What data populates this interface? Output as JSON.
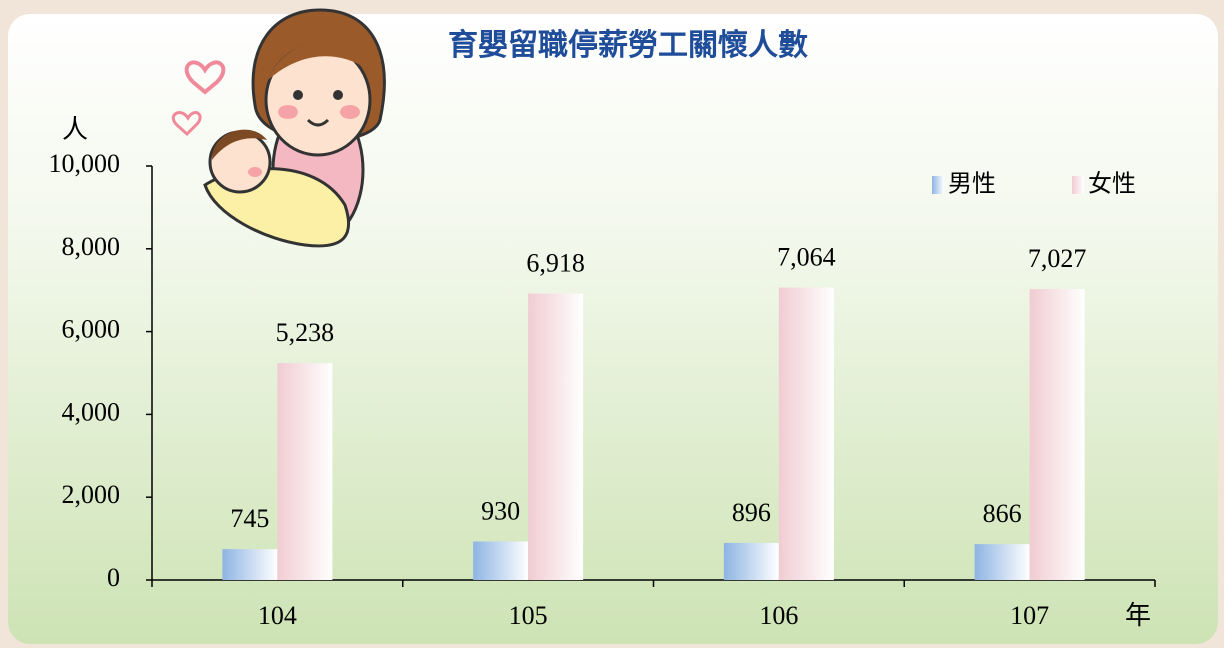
{
  "chart_data": {
    "type": "bar",
    "title": "育嬰留職停薪勞工關懷人數",
    "y_label": "人",
    "x_label": "年",
    "categories": [
      "104",
      "105",
      "106",
      "107"
    ],
    "series": [
      {
        "name": "男性",
        "color": "#8eb4e3",
        "values": [
          745,
          930,
          896,
          866
        ],
        "value_labels": [
          "745",
          "930",
          "896",
          "866"
        ]
      },
      {
        "name": "女性",
        "color": "#f0ccd2",
        "values": [
          5238,
          6918,
          7064,
          7027
        ],
        "value_labels": [
          "5,238",
          "6,918",
          "7,064",
          "7,027"
        ]
      }
    ],
    "ylim": [
      0,
      10000
    ],
    "yticks": [
      0,
      {
        "value": 2000,
        "label": "2,000"
      },
      {
        "value": 4000,
        "label": "4,000"
      },
      {
        "value": 6000,
        "label": "6,000"
      },
      {
        "value": 8000,
        "label": "8,000"
      },
      {
        "value": 10000,
        "label": "10,000"
      }
    ],
    "grid": false,
    "legend": "top-right"
  }
}
